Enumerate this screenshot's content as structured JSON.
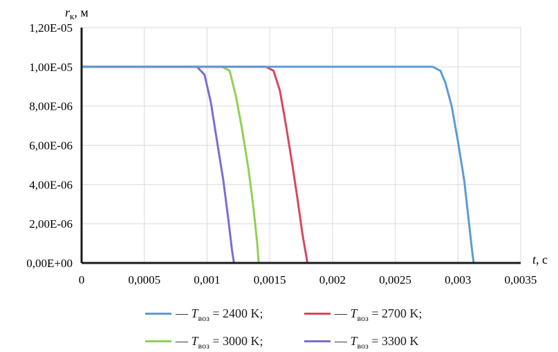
{
  "chart_data": {
    "type": "line",
    "title": "",
    "ylabel": {
      "symbol": "r",
      "sub": "к",
      "unit": ", м"
    },
    "xlabel": {
      "symbol": "t",
      "unit": ", с"
    },
    "xlim": [
      0,
      0.0035
    ],
    "ylim": [
      0,
      1.2e-05
    ],
    "x_ticks": [
      "0",
      "0,0005",
      "0,001",
      "0,0015",
      "0,002",
      "0,0025",
      "0,003",
      "0,0035"
    ],
    "y_ticks": [
      "0,00E+00",
      "2,00E-06",
      "4,00E-06",
      "6,00E-06",
      "8,00E-06",
      "1,00E-05",
      "1,20E-05"
    ],
    "grid": true,
    "legend_position": "bottom",
    "series": [
      {
        "name": "— Tвоз = 2400 K;",
        "legend": {
          "prefix": "— ",
          "symbol": "T",
          "sub": "воз",
          "rest": " = 2400 K;"
        },
        "color": "#5b9bd5",
        "points": [
          [
            0,
            1e-05
          ],
          [
            0.0028,
            1e-05
          ],
          [
            0.00286,
            9.8e-06
          ],
          [
            0.0029,
            9.2e-06
          ],
          [
            0.00295,
            8e-06
          ],
          [
            0.003,
            6.2e-06
          ],
          [
            0.00305,
            4.2e-06
          ],
          [
            0.00308,
            2.5e-06
          ],
          [
            0.00311,
            8e-07
          ],
          [
            0.003125,
            0.0
          ]
        ]
      },
      {
        "name": "— Tвоз = 2700 K;",
        "legend": {
          "prefix": "— ",
          "symbol": "T",
          "sub": "воз",
          "rest": " = 2700 K;"
        },
        "color": "#d9465b",
        "points": [
          [
            0,
            1e-05
          ],
          [
            0.00147,
            1e-05
          ],
          [
            0.00153,
            9.8e-06
          ],
          [
            0.00158,
            8.8e-06
          ],
          [
            0.00163,
            7e-06
          ],
          [
            0.00168,
            5e-06
          ],
          [
            0.00172,
            3.3e-06
          ],
          [
            0.00176,
            1.5e-06
          ],
          [
            0.0018,
            0.0
          ]
        ]
      },
      {
        "name": "— Tвоз = 3000 K;",
        "legend": {
          "prefix": "— ",
          "symbol": "T",
          "sub": "воз",
          "rest": " = 3000 K;"
        },
        "color": "#8fd14f",
        "points": [
          [
            0,
            1e-05
          ],
          [
            0.00112,
            1e-05
          ],
          [
            0.00118,
            9.8e-06
          ],
          [
            0.00123,
            8.5e-06
          ],
          [
            0.00128,
            6.8e-06
          ],
          [
            0.00133,
            4.8e-06
          ],
          [
            0.00137,
            2.8e-06
          ],
          [
            0.0014,
            1e-06
          ],
          [
            0.001412,
            0.0
          ]
        ]
      },
      {
        "name": "— Tвоз = 3300 K",
        "legend": {
          "prefix": "— ",
          "symbol": "T",
          "sub": "воз",
          "rest": " = 3300 K"
        },
        "color": "#7b6bd6",
        "points": [
          [
            0,
            1e-05
          ],
          [
            0.00092,
            1e-05
          ],
          [
            0.00098,
            9.6e-06
          ],
          [
            0.00103,
            8.2e-06
          ],
          [
            0.00108,
            6.2e-06
          ],
          [
            0.00113,
            4.2e-06
          ],
          [
            0.00117,
            2.2e-06
          ],
          [
            0.0012,
            6e-07
          ],
          [
            0.001215,
            0.0
          ]
        ]
      }
    ]
  }
}
